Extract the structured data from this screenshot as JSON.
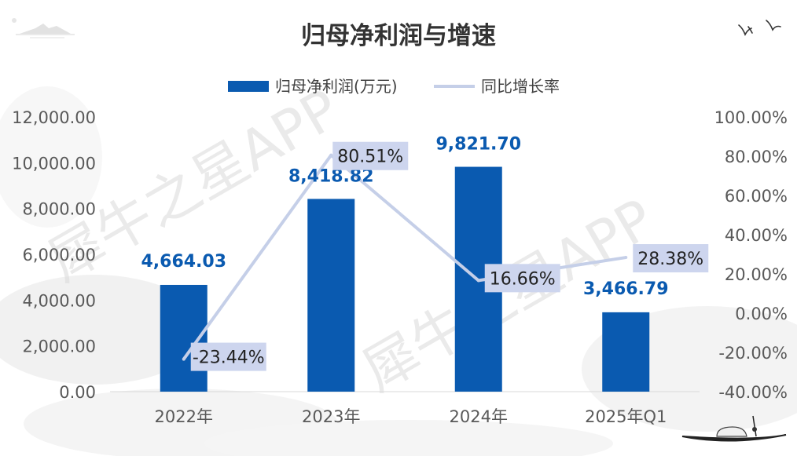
{
  "chart_data": {
    "type": "bar",
    "title": "归母净利润与增速",
    "categories": [
      "2022年",
      "2023年",
      "2024年",
      "2025年Q1"
    ],
    "series": [
      {
        "name": "归母净利润(万元)",
        "type": "bar",
        "axis": "left",
        "color": "#0a5ab0",
        "values": [
          4664.03,
          8418.82,
          9821.7,
          3466.79
        ],
        "labels": [
          "4,664.03",
          "8,418.82",
          "9,821.70",
          "3,466.79"
        ]
      },
      {
        "name": "同比增长率",
        "type": "line",
        "axis": "right",
        "color": "#c5cfe8",
        "values": [
          -23.44,
          80.51,
          16.66,
          28.38
        ],
        "labels": [
          "-23.44%",
          "80.51%",
          "16.66%",
          "28.38%"
        ]
      }
    ],
    "y_left": {
      "ylim": [
        0,
        12000
      ],
      "ticks": [
        "0.00",
        "2,000.00",
        "4,000.00",
        "6,000.00",
        "8,000.00",
        "10,000.00",
        "12,000.00"
      ]
    },
    "y_right": {
      "ylim": [
        -40,
        100
      ],
      "ticks": [
        "-40.00%",
        "-20.00%",
        "0.00%",
        "20.00%",
        "40.00%",
        "60.00%",
        "80.00%",
        "100.00%"
      ]
    },
    "legend_position": "top-center",
    "grid": false,
    "watermark": "犀牛之星APP"
  }
}
